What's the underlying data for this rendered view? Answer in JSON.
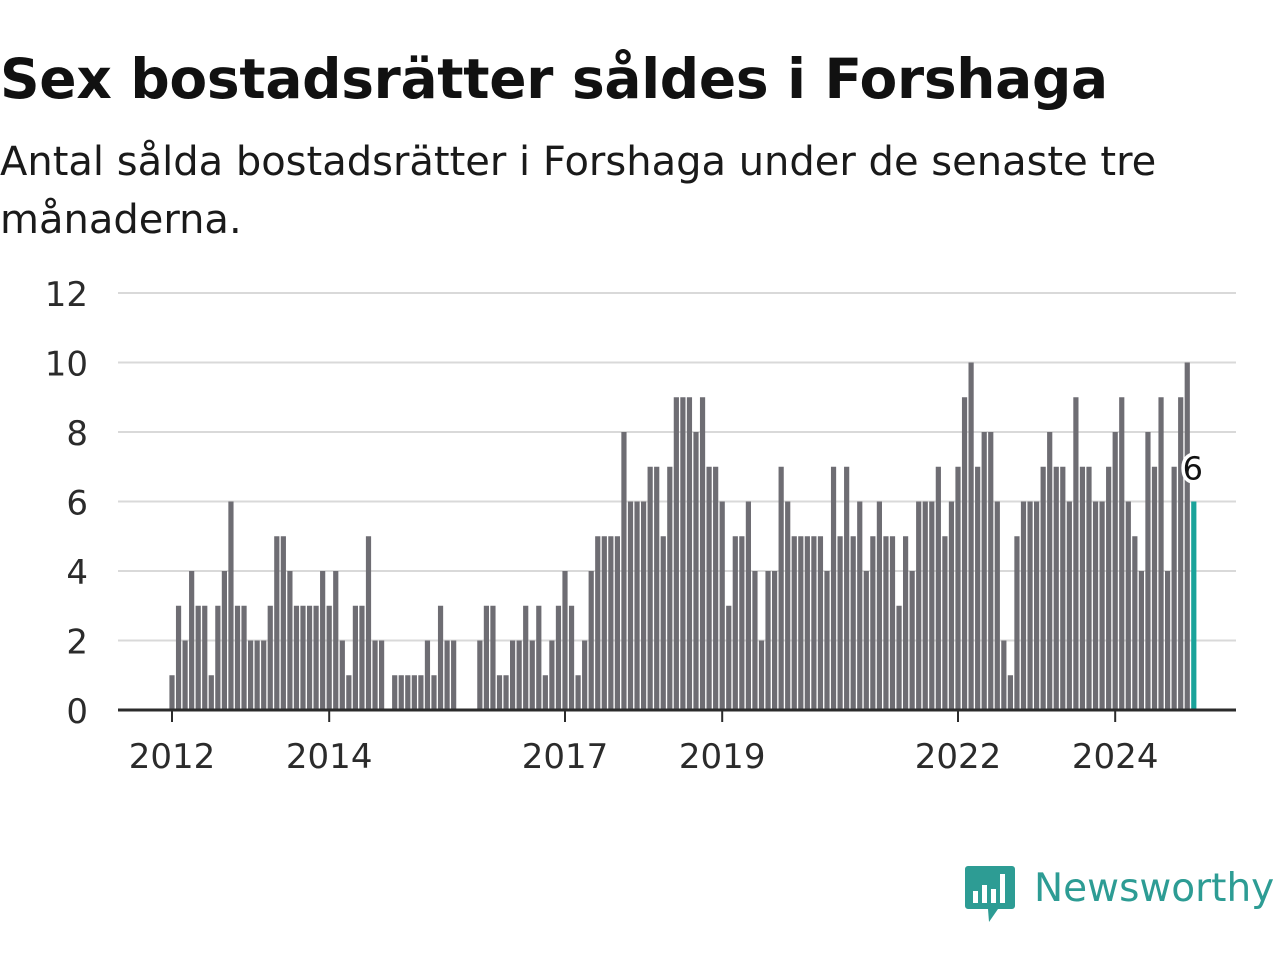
{
  "title": "Sex bostadsrätter såldes i Forshaga",
  "subtitle": "Antal sålda bostadsrätter i Forshaga under de senaste tre månaderna.",
  "logo": {
    "brand": "Newsworthy",
    "color": "#2d9c94"
  },
  "colors": {
    "bar": "#6e6d73",
    "highlight": "#1aa39a",
    "grid": "#d9d9d9",
    "axis": "#2b2b2b"
  },
  "chart_data": {
    "type": "bar",
    "title": "Sex bostadsrätter såldes i Forshaga",
    "subtitle": "Antal sålda bostadsrätter i Forshaga under de senaste tre månaderna.",
    "xlabel": "",
    "ylabel": "",
    "ylim": [
      0,
      12
    ],
    "yticks": [
      "0",
      "2",
      "4",
      "6",
      "8",
      "10",
      "12"
    ],
    "x_range": [
      "2011-06",
      "2025-12"
    ],
    "x_ticks": [
      {
        "label": "2012",
        "date": "2012-01"
      },
      {
        "label": "2014",
        "date": "2014-01"
      },
      {
        "label": "2017",
        "date": "2017-01"
      },
      {
        "label": "2019",
        "date": "2019-01"
      },
      {
        "label": "2022",
        "date": "2022-01"
      },
      {
        "label": "2024",
        "date": "2024-01"
      }
    ],
    "grid": true,
    "highlight_label": "6",
    "series": [
      {
        "start": "2012-01",
        "frequency": "monthly",
        "values": [
          1,
          3,
          2,
          4,
          3,
          3,
          1,
          3,
          4,
          6,
          3,
          3,
          2,
          2,
          2,
          3,
          5,
          5,
          4,
          3,
          3,
          3,
          3,
          4,
          3,
          4,
          2,
          1,
          3,
          3,
          5,
          2,
          2,
          null,
          1,
          1,
          1,
          1,
          1,
          2,
          1,
          3,
          2,
          2,
          null,
          null,
          null,
          2,
          3,
          3,
          1,
          1,
          2,
          2,
          3,
          2,
          3,
          1,
          2,
          3,
          4,
          3,
          1,
          2,
          4,
          5,
          5,
          5,
          5,
          8,
          6,
          6,
          6,
          7,
          7,
          5,
          7,
          9,
          9,
          9,
          8,
          9,
          7,
          7,
          6,
          3,
          5,
          5,
          6,
          4,
          2,
          4,
          4,
          7,
          6,
          5,
          5,
          5,
          5,
          5,
          4,
          7,
          5,
          7,
          5,
          6,
          4,
          5,
          6,
          5,
          5,
          3,
          5,
          4,
          6,
          6,
          6,
          7,
          5,
          6,
          7,
          9,
          10,
          7,
          8,
          8,
          6,
          2,
          1,
          5,
          6,
          6,
          6,
          7,
          8,
          7,
          7,
          6,
          9,
          7,
          7,
          6,
          6,
          7,
          8,
          9,
          6,
          5,
          4,
          8,
          7,
          9,
          4,
          7,
          9,
          10,
          6
        ]
      }
    ]
  }
}
